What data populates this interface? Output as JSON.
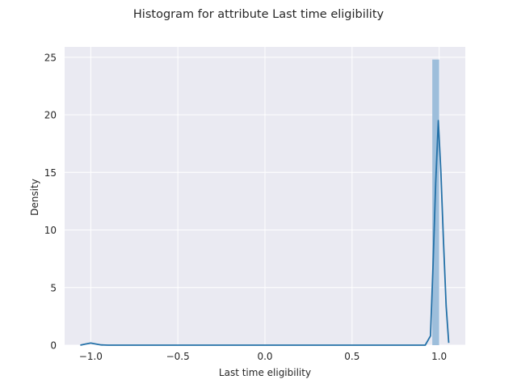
{
  "chart_data": {
    "type": "histogram",
    "title": "Histogram for attribute Last time eligibility",
    "xlabel": "Last time eligibility",
    "ylabel": "Density",
    "xlim": [
      -1.15,
      1.15
    ],
    "ylim": [
      0,
      25.9
    ],
    "grid": true,
    "xticks": [
      -1.0,
      -0.5,
      0.0,
      0.5,
      1.0
    ],
    "xtick_labels": [
      "−1.0",
      "−0.5",
      "0.0",
      "0.5",
      "1.0"
    ],
    "yticks": [
      0,
      5,
      10,
      15,
      20,
      25
    ],
    "ytick_labels": [
      "0",
      "5",
      "10",
      "15",
      "20",
      "25"
    ],
    "histogram": {
      "color": "#9dbedb",
      "bins": [
        {
          "x0": 0.9605,
          "x1": 1.0,
          "density": 24.8
        }
      ]
    },
    "kde": {
      "color": "#2471a8",
      "x": [
        -1.06,
        -1.03,
        -1.0,
        -0.97,
        -0.94,
        -0.9,
        -0.5,
        0.0,
        0.5,
        0.92,
        0.95,
        0.965,
        0.98,
        0.995,
        1.01,
        1.025,
        1.04,
        1.055
      ],
      "y": [
        0.0,
        0.1,
        0.18,
        0.1,
        0.02,
        0.0,
        0.0,
        0.0,
        0.0,
        0.0,
        0.8,
        7.0,
        14.0,
        19.5,
        15.0,
        9.0,
        3.4,
        0.2
      ]
    }
  }
}
